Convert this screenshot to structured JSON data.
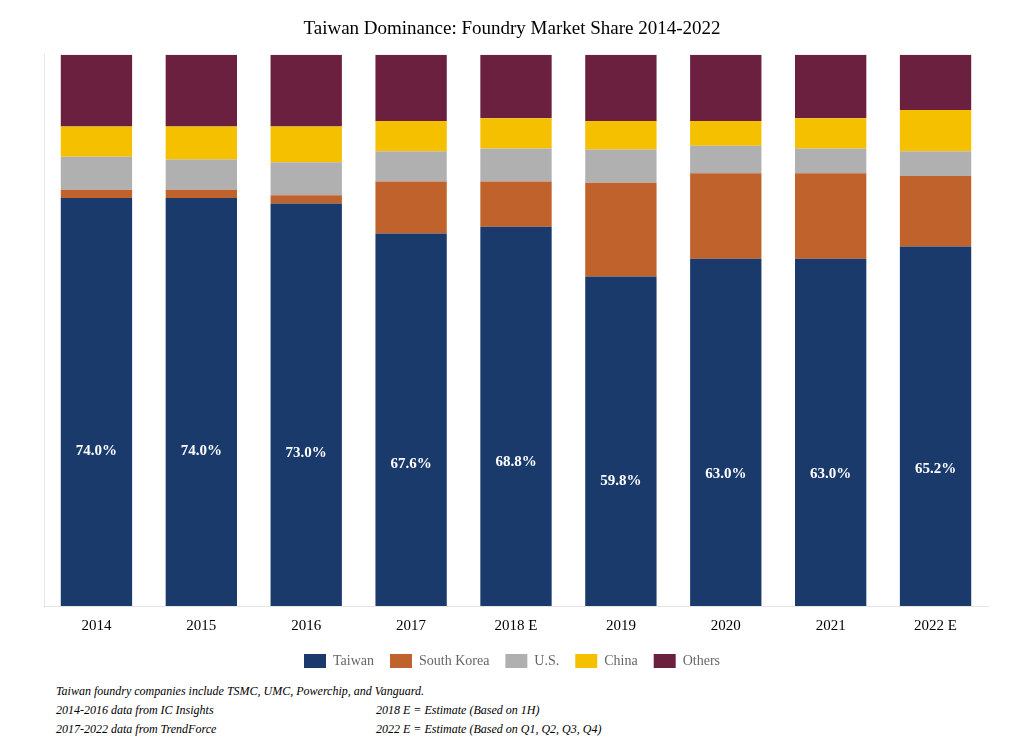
{
  "chart_data": {
    "type": "bar",
    "title": "Taiwan Dominance: Foundry Market Share 2014-2022",
    "categories": [
      "2014",
      "2015",
      "2016",
      "2017",
      "2018 E",
      "2019",
      "2020",
      "2021",
      "2022 E"
    ],
    "series": [
      {
        "name": "Taiwan",
        "color": "#1a3a6b",
        "values": [
          74.0,
          74.0,
          73.0,
          67.6,
          68.8,
          59.8,
          63.0,
          63.0,
          65.2
        ],
        "data_labels": true,
        "value_labels": [
          "74.0%",
          "74.0%",
          "73.0%",
          "67.6%",
          "68.8%",
          "59.8%",
          "63.0%",
          "63.0%",
          "65.2%"
        ]
      },
      {
        "name": "South Korea",
        "color": "#c0622b",
        "values": [
          1.5,
          1.5,
          1.5,
          9.4,
          8.2,
          17.0,
          15.5,
          15.5,
          12.8
        ]
      },
      {
        "name": "U.S.",
        "color": "#b0b0b0",
        "values": [
          6.0,
          5.5,
          6.0,
          5.5,
          6.0,
          6.0,
          5.0,
          4.5,
          4.5
        ]
      },
      {
        "name": "China",
        "color": "#f5c000",
        "values": [
          5.5,
          6.0,
          6.5,
          5.5,
          5.5,
          5.2,
          4.5,
          5.5,
          7.5
        ]
      },
      {
        "name": "Others",
        "color": "#6b2040",
        "values": [
          13.0,
          13.0,
          13.0,
          12.0,
          11.5,
          12.0,
          12.0,
          11.5,
          10.0
        ]
      }
    ],
    "stacked": true,
    "ylim": [
      0,
      100
    ],
    "yticks": [],
    "tick_labels": "x",
    "grid": false,
    "legend": "bottom",
    "annotations": [
      "Taiwan foundry companies include TSMC, UMC, Powerchip, and Vanguard.",
      "2014-2016 data from IC Insights",
      "2018 E = Estimate (Based on 1H)",
      "2017-2022 data from TrendForce",
      "2022 E = Estimate (Based on Q1, Q2, Q3, Q4)"
    ]
  }
}
